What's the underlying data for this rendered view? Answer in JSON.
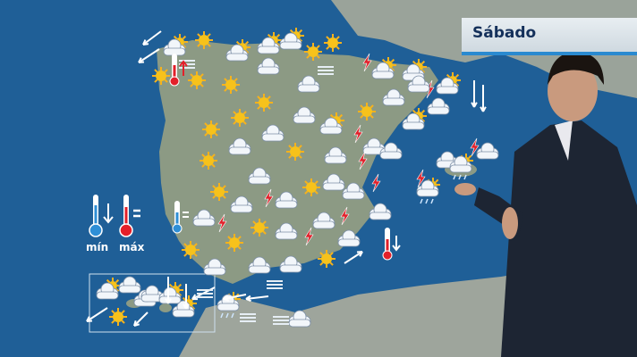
{
  "header": {
    "day_label": "Sábado"
  },
  "legend": {
    "min_label": "mín",
    "max_label": "máx",
    "min_trend": "arrow-down",
    "max_trend": "equal"
  },
  "colors": {
    "sea": "#1f5f97",
    "land": "#8c9a84",
    "sun": "#f7b21b",
    "lightning": "#e0202a",
    "title_text": "#14305a",
    "accent": "#2a8ad0"
  },
  "weather_icons": [
    "sun-cloud",
    "sun",
    "sun-cloud",
    "cloud-sun",
    "sun-cloud",
    "sun",
    "sun",
    "cloud",
    "lightning",
    "cloud-sun",
    "cloud-sun",
    "sun",
    "sun",
    "sun",
    "cloud",
    "sun",
    "sun",
    "cloud",
    "lightning",
    "cloud-sun",
    "sun",
    "sun",
    "cloud",
    "cloud",
    "sun",
    "cloud",
    "cloud-sun",
    "cloud",
    "lightning",
    "sun",
    "cloud",
    "cloud",
    "cloud",
    "lightning",
    "cloud-sun",
    "cloud",
    "sun",
    "cloud",
    "lightning",
    "cloud",
    "sun",
    "cloud",
    "cloud",
    "lightning",
    "cloud",
    "lightning",
    "sun",
    "sun",
    "cloud",
    "cloud",
    "cloud",
    "lightning",
    "cloud",
    "sun",
    "cloud",
    "cloud",
    "lightning",
    "cloud",
    "sun",
    "cloud",
    "cloud",
    "cloud",
    "lightning",
    "rain-cloud",
    "rain-cloud",
    "lightning",
    "rain-cloud",
    "cloud",
    "sun-cloud",
    "cloud",
    "sun",
    "cloud",
    "cloud-sun",
    "cloud",
    "cloud-sun"
  ],
  "thermometers": [
    {
      "type": "max",
      "trend": "arrow-up"
    },
    {
      "type": "min",
      "trend": "equal"
    },
    {
      "type": "max",
      "trend": "arrow-down"
    }
  ]
}
